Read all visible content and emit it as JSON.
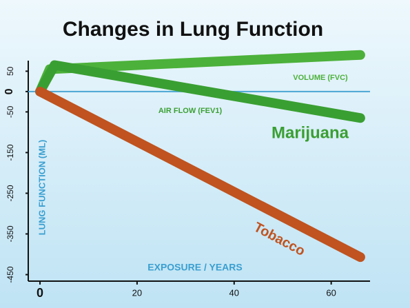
{
  "chart_data": {
    "type": "line",
    "title": "Changes in Lung Function",
    "xlabel": "EXPOSURE / YEARS",
    "ylabel": "LUNG FUNCTION (ML)",
    "series": [
      {
        "name": "VOLUME (FVC)",
        "color": "#4cb13a",
        "x": [
          0,
          2,
          66
        ],
        "values": [
          0,
          55,
          90
        ]
      },
      {
        "name": "AIR FLOW (FEV1)",
        "color": "#3a9f32",
        "x": [
          0,
          3,
          66
        ],
        "values": [
          0,
          65,
          -65
        ]
      },
      {
        "name": "Tobacco",
        "color": "#c0531f",
        "x": [
          0,
          66
        ],
        "values": [
          0,
          -407
        ]
      }
    ],
    "annotations": [
      "Marijuana"
    ],
    "xlim": [
      -1,
      68
    ],
    "xticks": [
      0,
      20,
      40,
      60
    ],
    "ylim": [
      -466,
      76
    ],
    "yticks": [
      50,
      0,
      -50,
      -150,
      -250,
      -350,
      -450
    ]
  }
}
